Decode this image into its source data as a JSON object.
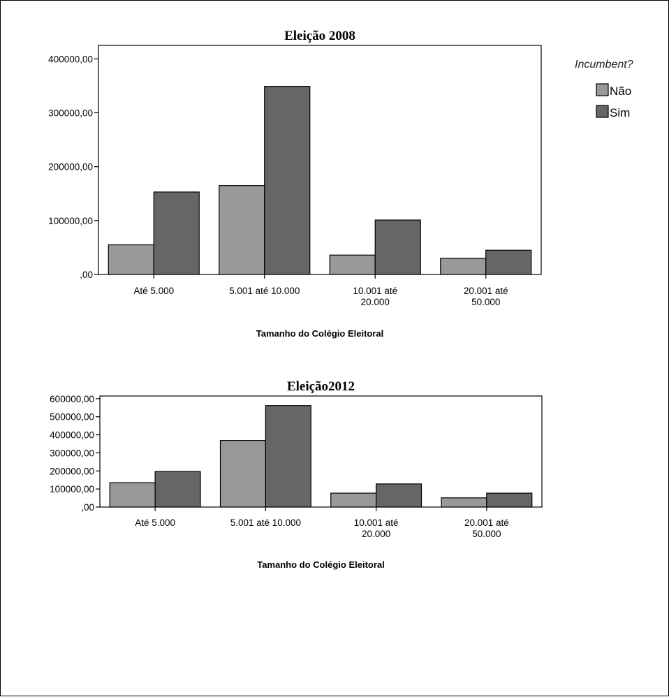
{
  "legend": {
    "title": "Incumbent?",
    "items": [
      {
        "label": "Não",
        "color": "#999999"
      },
      {
        "label": "Sim",
        "color": "#666666"
      }
    ]
  },
  "chart_data": [
    {
      "type": "bar",
      "title": "Eleição 2008",
      "xlabel": "Tamanho do Colégio Eleitoral",
      "ylabel": "",
      "categories": [
        [
          "Até 5.000"
        ],
        [
          "5.001 até 10.000"
        ],
        [
          "10.001 até",
          "20.000"
        ],
        [
          "20.001 até",
          "50.000"
        ]
      ],
      "series": [
        {
          "name": "Não",
          "values": [
            55000,
            165000,
            36000,
            30000
          ]
        },
        {
          "name": "Sim",
          "values": [
            153000,
            349000,
            101000,
            45000
          ]
        }
      ],
      "ylim": [
        0,
        425000
      ],
      "yticks": [
        0,
        100000,
        200000,
        300000,
        400000
      ],
      "ytick_labels": [
        ",00",
        "100000,00",
        "200000,00",
        "300000,00",
        "400000,00"
      ],
      "grid": false
    },
    {
      "type": "bar",
      "title": "Eleição2012",
      "xlabel": "Tamanho do Colégio Eleitoral",
      "ylabel": "",
      "categories": [
        [
          "Até 5.000"
        ],
        [
          "5.001 até 10.000"
        ],
        [
          "10.001 até",
          "20.000"
        ],
        [
          "20.001 até",
          "50.000"
        ]
      ],
      "series": [
        {
          "name": "Não",
          "values": [
            135000,
            369000,
            77000,
            51000
          ]
        },
        {
          "name": "Sim",
          "values": [
            197000,
            562000,
            128000,
            77000
          ]
        }
      ],
      "ylim": [
        0,
        615000
      ],
      "yticks": [
        0,
        100000,
        200000,
        300000,
        400000,
        500000,
        600000
      ],
      "ytick_labels": [
        ",00",
        "100000,00",
        "200000,00",
        "300000,00",
        "400000,00",
        "500000,00",
        "600000,00"
      ],
      "grid": false
    }
  ]
}
